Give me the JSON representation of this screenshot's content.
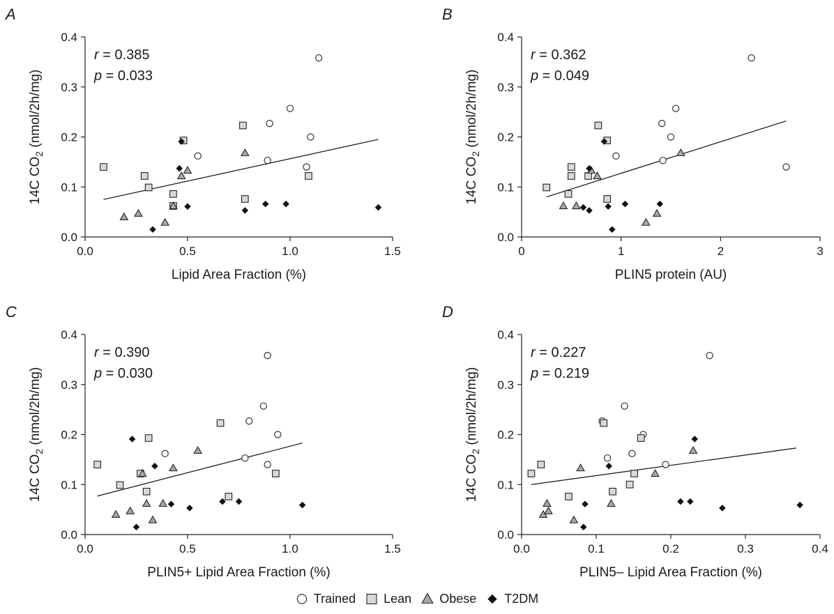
{
  "chart_data": [
    {
      "panel": "A",
      "type": "scatter",
      "xlabel": "Lipid Area Fraction (%)",
      "ylabel": "14C CO2 (nmol/2h/mg)",
      "xlim": [
        0,
        1.5
      ],
      "ylim": [
        0,
        0.4
      ],
      "xticks": [
        "0.0",
        "0.5",
        "1.0",
        "1.5"
      ],
      "yticks": [
        "0.0",
        "0.1",
        "0.2",
        "0.3",
        "0.4"
      ],
      "stat_r": "0.385",
      "stat_p": "0.033",
      "fit": [
        [
          0.09,
          0.075
        ],
        [
          1.43,
          0.195
        ]
      ],
      "series": [
        {
          "name": "Trained",
          "marker": "circle",
          "points": [
            [
              1.14,
              0.358
            ],
            [
              1.0,
              0.257
            ],
            [
              0.9,
              0.227
            ],
            [
              1.1,
              0.2
            ],
            [
              0.55,
              0.162
            ],
            [
              0.89,
              0.153
            ],
            [
              1.08,
              0.14
            ]
          ]
        },
        {
          "name": "Lean",
          "marker": "square",
          "points": [
            [
              0.09,
              0.14
            ],
            [
              0.48,
              0.193
            ],
            [
              0.77,
              0.223
            ],
            [
              0.29,
              0.122
            ],
            [
              0.31,
              0.099
            ],
            [
              0.43,
              0.086
            ],
            [
              1.09,
              0.122
            ],
            [
              0.78,
              0.076
            ],
            [
              0.43,
              0.062
            ]
          ]
        },
        {
          "name": "Obese",
          "marker": "triangle",
          "points": [
            [
              0.19,
              0.04
            ],
            [
              0.26,
              0.047
            ],
            [
              0.39,
              0.029
            ],
            [
              0.43,
              0.062
            ],
            [
              0.47,
              0.122
            ],
            [
              0.5,
              0.133
            ],
            [
              0.78,
              0.168
            ]
          ]
        },
        {
          "name": "T2DM",
          "marker": "diamond",
          "points": [
            [
              0.33,
              0.015
            ],
            [
              0.46,
              0.137
            ],
            [
              0.47,
              0.191
            ],
            [
              0.5,
              0.061
            ],
            [
              0.78,
              0.053
            ],
            [
              0.88,
              0.066
            ],
            [
              0.98,
              0.066
            ],
            [
              1.43,
              0.059
            ]
          ]
        }
      ]
    },
    {
      "panel": "B",
      "type": "scatter",
      "xlabel": "PLIN5 protein (AU)",
      "ylabel": "14C CO2 (nmol/2h/mg)",
      "xlim": [
        0,
        3
      ],
      "ylim": [
        0,
        0.4
      ],
      "xticks": [
        "0",
        "1",
        "2",
        "3"
      ],
      "yticks": [
        "0.0",
        "0.1",
        "0.2",
        "0.3",
        "0.4"
      ],
      "stat_r": "0.362",
      "stat_p": "0.049",
      "fit": [
        [
          0.25,
          0.08
        ],
        [
          2.66,
          0.232
        ]
      ],
      "series": [
        {
          "name": "Trained",
          "marker": "circle",
          "points": [
            [
              2.31,
              0.358
            ],
            [
              1.55,
              0.257
            ],
            [
              1.41,
              0.227
            ],
            [
              1.5,
              0.2
            ],
            [
              0.95,
              0.162
            ],
            [
              1.42,
              0.153
            ],
            [
              2.66,
              0.14
            ]
          ]
        },
        {
          "name": "Lean",
          "marker": "square",
          "points": [
            [
              0.25,
              0.099
            ],
            [
              0.5,
              0.14
            ],
            [
              0.5,
              0.122
            ],
            [
              0.47,
              0.086
            ],
            [
              0.77,
              0.223
            ],
            [
              0.86,
              0.193
            ],
            [
              0.67,
              0.122
            ],
            [
              0.86,
              0.076
            ]
          ]
        },
        {
          "name": "Obese",
          "marker": "triangle",
          "points": [
            [
              0.42,
              0.062
            ],
            [
              0.55,
              0.062
            ],
            [
              0.7,
              0.133
            ],
            [
              0.76,
              0.122
            ],
            [
              1.25,
              0.029
            ],
            [
              1.36,
              0.047
            ],
            [
              1.6,
              0.168
            ]
          ]
        },
        {
          "name": "T2DM",
          "marker": "diamond",
          "points": [
            [
              0.62,
              0.059
            ],
            [
              0.68,
              0.053
            ],
            [
              0.68,
              0.137
            ],
            [
              0.83,
              0.191
            ],
            [
              0.87,
              0.061
            ],
            [
              0.91,
              0.015
            ],
            [
              1.04,
              0.066
            ],
            [
              1.39,
              0.066
            ]
          ]
        }
      ]
    },
    {
      "panel": "C",
      "type": "scatter",
      "xlabel": "PLIN5+ Lipid Area Fraction (%)",
      "ylabel": "14C CO2 (nmol/2h/mg)",
      "xlim": [
        0,
        1.5
      ],
      "ylim": [
        0,
        0.4
      ],
      "xticks": [
        "0.0",
        "0.5",
        "1.0",
        "1.5"
      ],
      "yticks": [
        "0.0",
        "0.1",
        "0.2",
        "0.3",
        "0.4"
      ],
      "stat_r": "0.390",
      "stat_p": "0.030",
      "fit": [
        [
          0.06,
          0.077
        ],
        [
          1.06,
          0.183
        ]
      ],
      "series": [
        {
          "name": "Trained",
          "marker": "circle",
          "points": [
            [
              0.89,
              0.358
            ],
            [
              0.87,
              0.257
            ],
            [
              0.8,
              0.227
            ],
            [
              0.94,
              0.2
            ],
            [
              0.39,
              0.162
            ],
            [
              0.78,
              0.153
            ],
            [
              0.89,
              0.14
            ]
          ]
        },
        {
          "name": "Lean",
          "marker": "square",
          "points": [
            [
              0.06,
              0.14
            ],
            [
              0.31,
              0.193
            ],
            [
              0.66,
              0.223
            ],
            [
              0.17,
              0.099
            ],
            [
              0.27,
              0.122
            ],
            [
              0.3,
              0.086
            ],
            [
              0.93,
              0.122
            ],
            [
              0.7,
              0.076
            ]
          ]
        },
        {
          "name": "Obese",
          "marker": "triangle",
          "points": [
            [
              0.15,
              0.04
            ],
            [
              0.22,
              0.047
            ],
            [
              0.28,
              0.122
            ],
            [
              0.3,
              0.062
            ],
            [
              0.33,
              0.029
            ],
            [
              0.38,
              0.062
            ],
            [
              0.43,
              0.133
            ],
            [
              0.55,
              0.168
            ]
          ]
        },
        {
          "name": "T2DM",
          "marker": "diamond",
          "points": [
            [
              0.23,
              0.191
            ],
            [
              0.25,
              0.015
            ],
            [
              0.34,
              0.137
            ],
            [
              0.42,
              0.061
            ],
            [
              0.51,
              0.053
            ],
            [
              0.67,
              0.066
            ],
            [
              0.75,
              0.066
            ],
            [
              1.06,
              0.059
            ]
          ]
        }
      ]
    },
    {
      "panel": "D",
      "type": "scatter",
      "xlabel": "PLIN5– Lipid Area Fraction (%)",
      "ylabel": "14C CO2 (nmol/2h/mg)",
      "xlim": [
        0,
        0.4
      ],
      "ylim": [
        0,
        0.4
      ],
      "xticks": [
        "0.0",
        "0.1",
        "0.2",
        "0.3",
        "0.4"
      ],
      "yticks": [
        "0.0",
        "0.1",
        "0.2",
        "0.3",
        "0.4"
      ],
      "stat_r": "0.227",
      "stat_p": "0.219",
      "fit": [
        [
          0.013,
          0.1
        ],
        [
          0.368,
          0.173
        ]
      ],
      "series": [
        {
          "name": "Trained",
          "marker": "circle",
          "points": [
            [
              0.252,
              0.358
            ],
            [
              0.138,
              0.257
            ],
            [
              0.108,
              0.227
            ],
            [
              0.163,
              0.2
            ],
            [
              0.115,
              0.153
            ],
            [
              0.148,
              0.162
            ],
            [
              0.193,
              0.14
            ]
          ]
        },
        {
          "name": "Lean",
          "marker": "square",
          "points": [
            [
              0.013,
              0.122
            ],
            [
              0.026,
              0.14
            ],
            [
              0.063,
              0.076
            ],
            [
              0.11,
              0.223
            ],
            [
              0.122,
              0.086
            ],
            [
              0.145,
              0.1
            ],
            [
              0.151,
              0.122
            ],
            [
              0.16,
              0.193
            ]
          ]
        },
        {
          "name": "Obese",
          "marker": "triangle",
          "points": [
            [
              0.029,
              0.04
            ],
            [
              0.034,
              0.062
            ],
            [
              0.036,
              0.047
            ],
            [
              0.07,
              0.029
            ],
            [
              0.079,
              0.133
            ],
            [
              0.12,
              0.062
            ],
            [
              0.179,
              0.122
            ],
            [
              0.23,
              0.168
            ]
          ]
        },
        {
          "name": "T2DM",
          "marker": "diamond",
          "points": [
            [
              0.083,
              0.015
            ],
            [
              0.085,
              0.061
            ],
            [
              0.117,
              0.137
            ],
            [
              0.213,
              0.066
            ],
            [
              0.226,
              0.066
            ],
            [
              0.232,
              0.191
            ],
            [
              0.269,
              0.053
            ],
            [
              0.373,
              0.059
            ]
          ]
        }
      ]
    }
  ],
  "legend": {
    "items": [
      {
        "label": "Trained",
        "marker": "circle"
      },
      {
        "label": "Lean",
        "marker": "square"
      },
      {
        "label": "Obese",
        "marker": "triangle"
      },
      {
        "label": "T2DM",
        "marker": "diamond"
      }
    ]
  },
  "marker_fill": {
    "circle": "#ffffff",
    "square": "#d9d9d9",
    "triangle": "#a9a9a9",
    "diamond": "#111111"
  }
}
